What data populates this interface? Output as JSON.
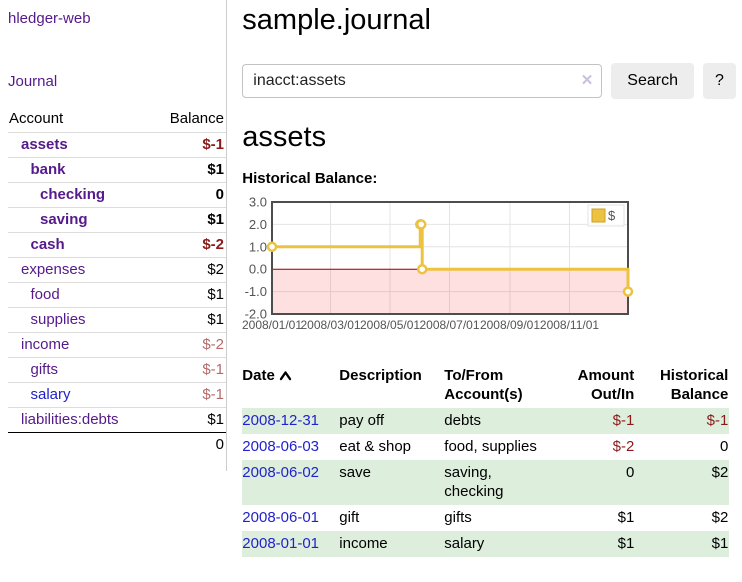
{
  "colors": {
    "link_purple": "#551A8B",
    "link_blue": "#2222cc",
    "negative_strong": "#8b1a1a",
    "negative_soft": "#b46a6a",
    "row_green": "#ddeedd",
    "button_gray": "#ededed"
  },
  "app": {
    "title": "hledger-web",
    "nav_journal": "Journal"
  },
  "sidebar": {
    "account_header": "Account",
    "balance_header": "Balance",
    "rows": [
      {
        "label": "assets",
        "depth": 0,
        "bold": true,
        "balance": "$-1",
        "balance_tone": "neg-strong"
      },
      {
        "label": "bank",
        "depth": 1,
        "bold": true,
        "balance": "$1",
        "balance_tone": "pos"
      },
      {
        "label": "checking",
        "depth": 2,
        "bold": true,
        "balance": "0",
        "balance_tone": "pos"
      },
      {
        "label": "saving",
        "depth": 2,
        "bold": true,
        "balance": "$1",
        "balance_tone": "pos"
      },
      {
        "label": "cash",
        "depth": 1,
        "bold": true,
        "balance": "$-2",
        "balance_tone": "neg-strong"
      },
      {
        "label": "expenses",
        "depth": 0,
        "bold": false,
        "balance": "$2",
        "balance_tone": "pos"
      },
      {
        "label": "food",
        "depth": 1,
        "bold": false,
        "balance": "$1",
        "balance_tone": "pos"
      },
      {
        "label": "supplies",
        "depth": 1,
        "bold": false,
        "balance": "$1",
        "balance_tone": "pos"
      },
      {
        "label": "income",
        "depth": 0,
        "bold": false,
        "balance": "$-2",
        "balance_tone": "neg-soft"
      },
      {
        "label": "gifts",
        "depth": 1,
        "bold": false,
        "balance": "$-1",
        "balance_tone": "neg-soft"
      },
      {
        "label": "salary",
        "depth": 1,
        "bold": false,
        "balance": "$-1",
        "balance_tone": "neg-soft",
        "link_tone": "blue"
      },
      {
        "label": "liabilities:debts",
        "depth": 0,
        "bold": false,
        "balance": "$1",
        "balance_tone": "pos"
      }
    ],
    "total": "0"
  },
  "main": {
    "title": "sample.journal",
    "search": {
      "value": "inacct:assets",
      "clear_icon": "✕",
      "button": "Search",
      "help_button": "?"
    },
    "heading": "assets",
    "chart_label": "Historical Balance:"
  },
  "chart_data": {
    "type": "line",
    "step": true,
    "title": "Historical Balance:",
    "series": [
      {
        "name": "$",
        "color": "#edc240",
        "points": [
          [
            "2008-01-01",
            1
          ],
          [
            "2008-06-01",
            2
          ],
          [
            "2008-06-02",
            2
          ],
          [
            "2008-06-03",
            0
          ],
          [
            "2008-12-31",
            -1
          ]
        ]
      }
    ],
    "x_range": [
      "2008-01-01",
      "2008-12-31"
    ],
    "ylim": [
      -2.0,
      3.0
    ],
    "y_ticks": [
      3.0,
      2.0,
      1.0,
      0.0,
      -1.0,
      -2.0
    ],
    "x_tick_labels": [
      "2008/01/01",
      "2008/03/01",
      "2008/05/01",
      "2008/07/01",
      "2008/09/01",
      "2008/11/01"
    ],
    "grid": true,
    "negative_region_fill": "rgba(255,0,0,0.12)",
    "zero_line_color": "#a40000",
    "legend": {
      "label": "$",
      "position": "top-right"
    }
  },
  "register": {
    "headers": {
      "date": "Date",
      "description": "Description",
      "tofrom_line1": "To/From",
      "tofrom_line2": "Account(s)",
      "amount_line1": "Amount",
      "amount_line2": "Out/In",
      "balance_line1": "Historical",
      "balance_line2": "Balance"
    },
    "rows": [
      {
        "date": "2008-12-31",
        "description": "pay off",
        "accounts": "debts",
        "amount": "$-1",
        "amount_tone": "neg",
        "balance": "$-1",
        "balance_tone": "neg"
      },
      {
        "date": "2008-06-03",
        "description": "eat & shop",
        "accounts": "food, supplies",
        "amount": "$-2",
        "amount_tone": "neg",
        "balance": "0",
        "balance_tone": "pos"
      },
      {
        "date": "2008-06-02",
        "description": "save",
        "accounts": "saving, checking",
        "amount": "0",
        "amount_tone": "pos",
        "balance": "$2",
        "balance_tone": "pos"
      },
      {
        "date": "2008-06-01",
        "description": "gift",
        "accounts": "gifts",
        "amount": "$1",
        "amount_tone": "pos",
        "balance": "$2",
        "balance_tone": "pos"
      },
      {
        "date": "2008-01-01",
        "description": "income",
        "accounts": "salary",
        "amount": "$1",
        "amount_tone": "pos",
        "balance": "$1",
        "balance_tone": "pos"
      }
    ]
  }
}
